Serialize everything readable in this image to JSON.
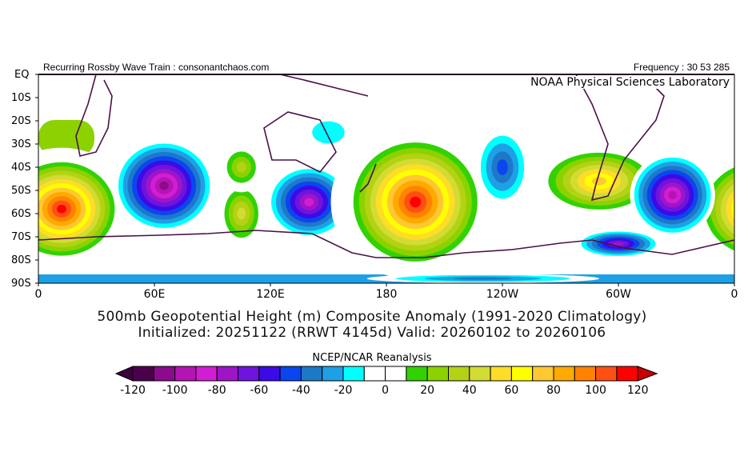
{
  "header": {
    "left": "Recurring Rossby Wave Train : consonantchaos.com",
    "right": "Frequency : 30 53 285",
    "lab": "NOAA Physical Sciences Laboratory"
  },
  "axes": {
    "lat_labels": [
      "EQ",
      "10S",
      "20S",
      "30S",
      "40S",
      "50S",
      "60S",
      "70S",
      "80S",
      "90S"
    ],
    "lon_labels": [
      "0",
      "60E",
      "120E",
      "180",
      "120W",
      "60W",
      "0"
    ]
  },
  "title": {
    "line1": "500mb Geopotential Height (m) Composite Anomaly (1991-2020 Climatology)",
    "line2": "Initialized: 20251122 (RRWT 4145d) Valid: 20260102 to 20260106"
  },
  "colorbar": {
    "source": "NCEP/NCAR Reanalysis",
    "labels": [
      "-120",
      "-100",
      "-80",
      "-60",
      "-40",
      "-20",
      "0",
      "20",
      "40",
      "60",
      "80",
      "100",
      "120"
    ],
    "colors": [
      "#4b004b",
      "#8c0a8c",
      "#b414b4",
      "#d21ed2",
      "#a014c8",
      "#6e14dc",
      "#3c0ae6",
      "#0a46f0",
      "#1e78c8",
      "#1ea0e6",
      "#00ffff",
      "#ffffff",
      "#ffffff",
      "#32d200",
      "#8cd200",
      "#b4d214",
      "#d2dc32",
      "#ffdc28",
      "#ffff00",
      "#ffc832",
      "#ffaa00",
      "#ff8200",
      "#ff5014",
      "#ff0000"
    ],
    "under_color": "#3c003c",
    "over_color": "#c80000"
  },
  "anomaly_centers": [
    {
      "lon": 12,
      "lat": -58,
      "value": 120
    },
    {
      "lon": 372,
      "lat": -58,
      "value": 110
    },
    {
      "lon": 65,
      "lat": -48,
      "value": -110
    },
    {
      "lon": 105,
      "lat": -60,
      "value": 50
    },
    {
      "lon": 105,
      "lat": -40,
      "value": 40
    },
    {
      "lon": 140,
      "lat": -55,
      "value": -90
    },
    {
      "lon": 195,
      "lat": -55,
      "value": 120
    },
    {
      "lon": 240,
      "lat": -40,
      "value": -50
    },
    {
      "lon": 290,
      "lat": -46,
      "value": 80
    },
    {
      "lon": 328,
      "lat": -52,
      "value": -100
    },
    {
      "lon": 300,
      "lat": -73,
      "value": -80
    },
    {
      "lon": 150,
      "lat": -25,
      "value": -25
    },
    {
      "lon": 230,
      "lat": -88,
      "value": -40
    }
  ]
}
